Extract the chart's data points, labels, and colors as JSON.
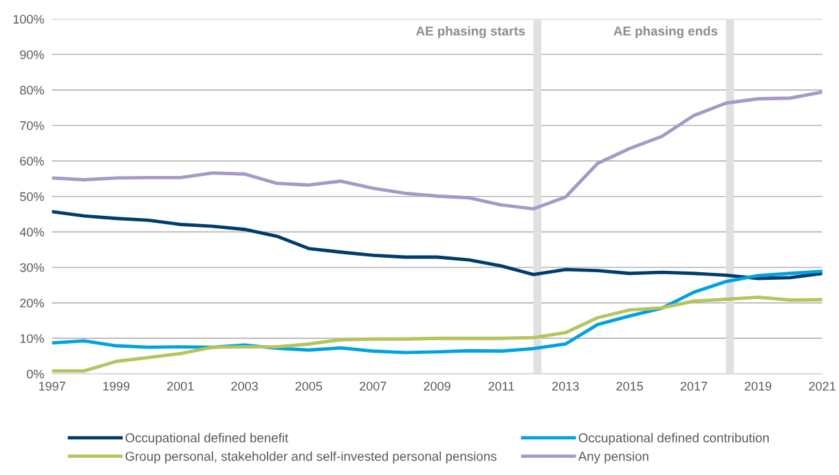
{
  "chart_data": {
    "type": "line",
    "x": [
      1997,
      1998,
      1999,
      2000,
      2001,
      2002,
      2003,
      2004,
      2005,
      2006,
      2007,
      2008,
      2009,
      2010,
      2011,
      2012,
      2013,
      2014,
      2015,
      2016,
      2017,
      2018,
      2019,
      2020,
      2021
    ],
    "series": [
      {
        "name": "Occupational defined benefit",
        "color": "#003d6b",
        "values": [
          45.7,
          44.5,
          43.8,
          43.3,
          42.1,
          41.6,
          40.7,
          38.8,
          35.3,
          34.3,
          33.4,
          32.9,
          32.9,
          32.1,
          30.4,
          28.0,
          29.4,
          29.1,
          28.3,
          28.6,
          28.3,
          27.8,
          26.9,
          27.1,
          28.3
        ]
      },
      {
        "name": "Occupational defined contribution",
        "color": "#00a3e0",
        "values": [
          8.7,
          9.3,
          7.9,
          7.5,
          7.6,
          7.5,
          8.1,
          7.2,
          6.7,
          7.3,
          6.4,
          6.0,
          6.2,
          6.5,
          6.4,
          7.1,
          8.4,
          13.9,
          16.3,
          18.5,
          23.0,
          26.0,
          27.7,
          28.3,
          28.9
        ]
      },
      {
        "name": "Group personal, stakeholder and self-invested personal pensions",
        "color": "#b5c45c",
        "values": [
          0.8,
          0.8,
          3.5,
          4.6,
          5.7,
          7.5,
          7.6,
          7.6,
          8.4,
          9.6,
          9.8,
          9.8,
          10.0,
          10.0,
          10.0,
          10.2,
          11.6,
          15.8,
          18.0,
          18.6,
          20.5,
          21.0,
          21.6,
          20.8,
          20.9
        ]
      },
      {
        "name": "Any pension",
        "color": "#a898c8",
        "values": [
          55.2,
          54.7,
          55.2,
          55.3,
          55.3,
          56.6,
          56.3,
          53.7,
          53.2,
          54.3,
          52.3,
          50.9,
          50.1,
          49.6,
          47.6,
          46.5,
          49.8,
          59.3,
          63.5,
          66.9,
          72.8,
          76.3,
          77.5,
          77.7,
          79.4
        ]
      }
    ],
    "bands": [
      {
        "axis": "x",
        "from": 2012.0,
        "to": 2012.25,
        "label": "AE phasing starts",
        "color": "#e0e0e0"
      },
      {
        "axis": "x",
        "from": 2018.0,
        "to": 2018.25,
        "label": "AE phasing ends",
        "color": "#e0e0e0"
      }
    ],
    "xlim": [
      1997,
      2021
    ],
    "xticks": [
      1997,
      1999,
      2001,
      2003,
      2005,
      2007,
      2009,
      2011,
      2013,
      2015,
      2017,
      2019,
      2021
    ],
    "ylim": [
      0,
      100
    ],
    "yticks": [
      {
        "value": 0,
        "label": "0%"
      },
      {
        "value": 10,
        "label": "10%"
      },
      {
        "value": 20,
        "label": "20%"
      },
      {
        "value": 30,
        "label": "30%"
      },
      {
        "value": 40,
        "label": "40%"
      },
      {
        "value": 50,
        "label": "50%"
      },
      {
        "value": 60,
        "label": "60%"
      },
      {
        "value": 70,
        "label": "70%"
      },
      {
        "value": 80,
        "label": "80%"
      },
      {
        "value": 90,
        "label": "90%"
      },
      {
        "value": 100,
        "label": "100%"
      }
    ],
    "grid": "y",
    "legend": "bottom",
    "marker": "none",
    "line_style": "solid"
  }
}
